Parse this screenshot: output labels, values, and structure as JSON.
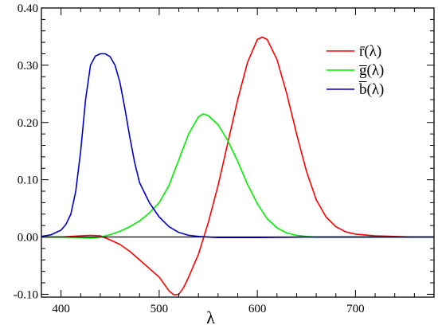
{
  "chart_data": {
    "type": "line",
    "title": "",
    "xlabel": "λ",
    "ylabel": "",
    "xlim": [
      380,
      780
    ],
    "ylim": [
      -0.105,
      0.4
    ],
    "x_ticks": [
      400,
      500,
      600,
      700
    ],
    "x_tick_labels": [
      "400",
      "500",
      "600",
      "700"
    ],
    "y_ticks": [
      -0.1,
      0.0,
      0.1,
      0.2,
      0.3,
      0.4
    ],
    "y_tick_labels": [
      "-0.10",
      "0.00",
      "0.10",
      "0.20",
      "0.30",
      "0.40"
    ],
    "zero_line": true,
    "grid": false,
    "legend_position": "top-right",
    "series": [
      {
        "name": "r̄(λ)",
        "color": "#ff0000",
        "x": [
          380,
          390,
          400,
          410,
          420,
          430,
          440,
          450,
          460,
          470,
          480,
          490,
          500,
          510,
          515,
          520,
          525,
          530,
          540,
          550,
          560,
          570,
          580,
          590,
          600,
          605,
          610,
          620,
          630,
          640,
          650,
          660,
          670,
          680,
          690,
          700,
          720,
          740,
          760,
          780
        ],
        "y": [
          0.0,
          0.0,
          0.0,
          0.001,
          0.002,
          0.003,
          0.002,
          -0.005,
          -0.013,
          -0.025,
          -0.04,
          -0.055,
          -0.07,
          -0.094,
          -0.101,
          -0.1,
          -0.088,
          -0.07,
          -0.03,
          0.025,
          0.09,
          0.165,
          0.24,
          0.305,
          0.345,
          0.349,
          0.345,
          0.31,
          0.25,
          0.18,
          0.115,
          0.065,
          0.035,
          0.018,
          0.009,
          0.005,
          0.002,
          0.001,
          0.0,
          0.0
        ]
      },
      {
        "name": "g̅(λ)",
        "color": "#00ee00",
        "x": [
          380,
          400,
          420,
          430,
          440,
          450,
          460,
          470,
          480,
          490,
          500,
          510,
          520,
          530,
          540,
          545,
          550,
          560,
          570,
          580,
          590,
          600,
          610,
          620,
          630,
          640,
          650,
          660,
          680,
          700,
          740,
          780
        ],
        "y": [
          0.0,
          0.0,
          -0.001,
          -0.002,
          0.0,
          0.004,
          0.01,
          0.018,
          0.028,
          0.042,
          0.06,
          0.09,
          0.135,
          0.18,
          0.21,
          0.215,
          0.212,
          0.196,
          0.168,
          0.132,
          0.092,
          0.058,
          0.032,
          0.016,
          0.007,
          0.003,
          0.001,
          0.0,
          0.0,
          0.0,
          0.0,
          0.0
        ]
      },
      {
        "name": "b̅(λ)",
        "color": "#0000cc",
        "x": [
          380,
          390,
          400,
          405,
          410,
          415,
          420,
          425,
          430,
          435,
          440,
          445,
          450,
          455,
          460,
          465,
          470,
          475,
          480,
          490,
          500,
          510,
          520,
          530,
          540,
          550,
          560,
          580,
          600,
          650,
          700,
          780
        ],
        "y": [
          0.001,
          0.004,
          0.012,
          0.022,
          0.04,
          0.08,
          0.15,
          0.24,
          0.3,
          0.316,
          0.32,
          0.32,
          0.315,
          0.3,
          0.27,
          0.225,
          0.175,
          0.13,
          0.095,
          0.06,
          0.035,
          0.018,
          0.008,
          0.003,
          0.001,
          0.0,
          -0.001,
          -0.001,
          -0.001,
          0.0,
          0.0,
          0.0
        ]
      }
    ]
  }
}
